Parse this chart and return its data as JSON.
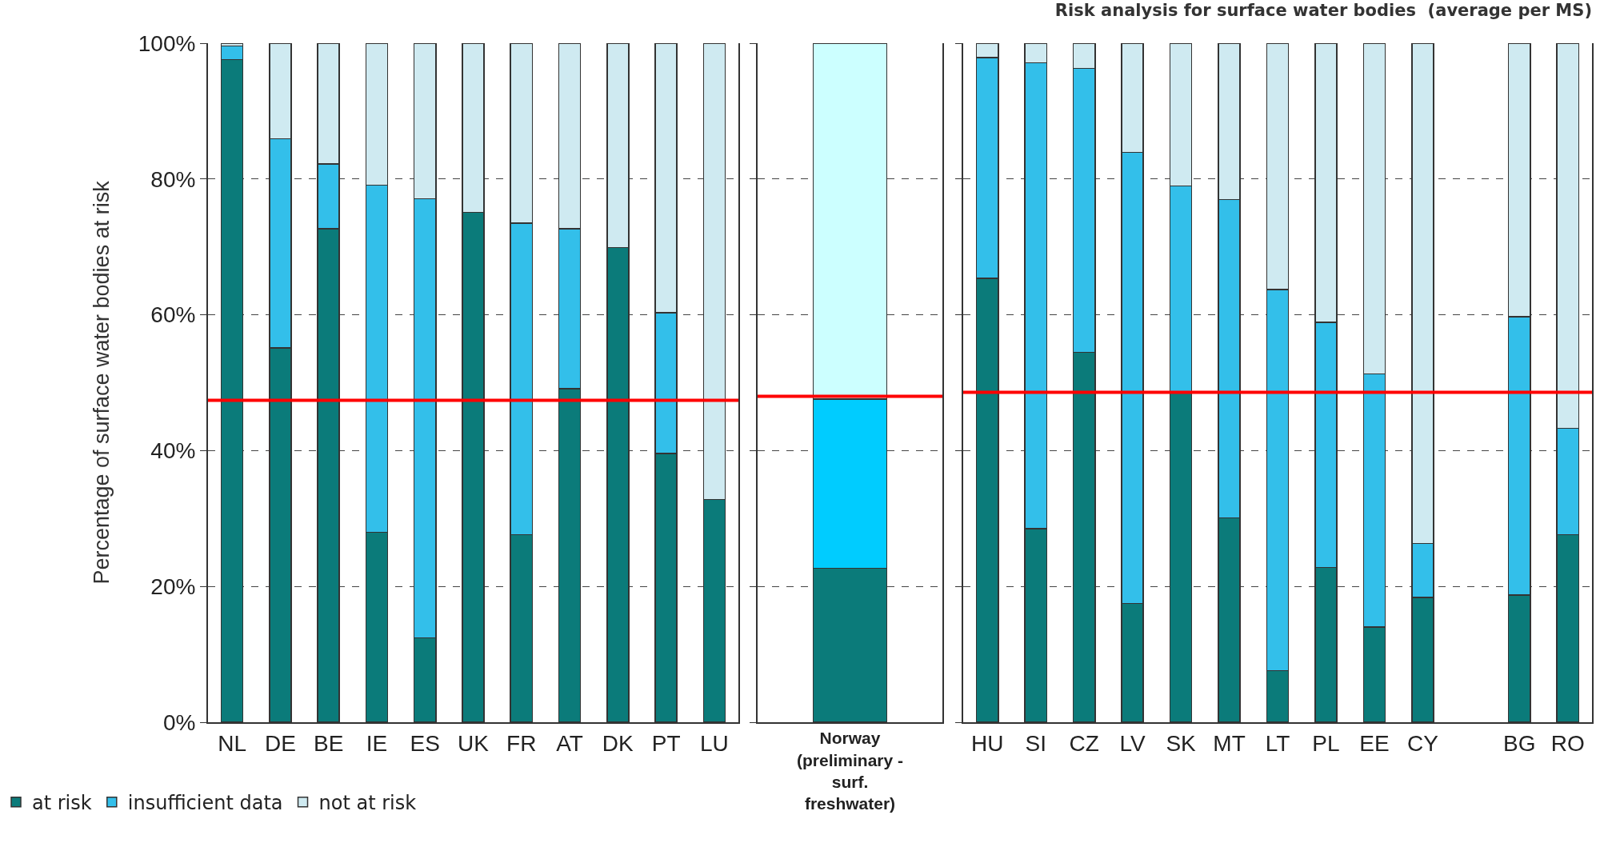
{
  "chart_data": [
    {
      "type": "bar",
      "stacked": true,
      "ylabel": "Percentage of surface water bodies at risk",
      "categories": [
        "NL",
        "DE",
        "BE",
        "IE",
        "ES",
        "UK",
        "FR",
        "AT",
        "DK",
        "PT",
        "LU"
      ],
      "series": [
        {
          "name": "at risk",
          "color": "#0b7b7a",
          "values": [
            97.6,
            55.1,
            72.7,
            28.0,
            12.4,
            75.1,
            27.6,
            49.1,
            69.9,
            39.6,
            32.8
          ]
        },
        {
          "name": "insufficient data",
          "color": "#33bfea",
          "values": [
            2.0,
            30.8,
            9.5,
            51.1,
            64.7,
            0,
            45.9,
            23.6,
            0,
            20.7,
            0
          ]
        },
        {
          "name": "not at risk",
          "color": "#cfeaf1",
          "values": [
            0.4,
            14.1,
            17.8,
            20.9,
            22.9,
            24.9,
            26.5,
            27.3,
            30.1,
            39.7,
            67.2
          ]
        }
      ],
      "ylim": [
        0,
        100
      ],
      "yticks": [
        {
          "value": 0,
          "label": "0%"
        },
        {
          "value": 20,
          "label": "20%"
        },
        {
          "value": 40,
          "label": "40%"
        },
        {
          "value": 60,
          "label": "60%"
        },
        {
          "value": 80,
          "label": "80%"
        },
        {
          "value": 100,
          "label": "100%"
        }
      ],
      "grid": "y",
      "legend": "bottom",
      "ref_lines": [
        {
          "axis": "y",
          "value": 47.4,
          "color": "#ff0000"
        }
      ]
    },
    {
      "type": "bar",
      "stacked": true,
      "categories": [
        "Norway (preliminary - surf. freshwater)"
      ],
      "series": [
        {
          "color": "#0b7b7a",
          "values": [
            22.7
          ]
        },
        {
          "color": "#00ccff",
          "values": [
            24.9
          ]
        },
        {
          "color": "#ccffff",
          "values": [
            52.4
          ]
        }
      ],
      "ylim": [
        0,
        100
      ],
      "yticks": [
        0,
        20,
        40,
        60,
        80,
        100
      ],
      "tick_labels": "x",
      "grid": "y",
      "ref_lines": [
        {
          "axis": "y",
          "value": 48.0,
          "color": "#ff0000"
        }
      ]
    },
    {
      "type": "bar",
      "stacked": true,
      "title": "Risk analysis for surface water bodies  (average per MS)",
      "categories": [
        "HU",
        "SI",
        "CZ",
        "LV",
        "SK",
        "MT",
        "LT",
        "PL",
        "EE",
        "CY",
        null,
        "BG",
        "RO"
      ],
      "series": [
        {
          "color": "#0b7b7a",
          "values": [
            65.4,
            28.5,
            54.5,
            17.5,
            48.7,
            30.1,
            7.6,
            22.8,
            14.0,
            18.4,
            null,
            18.7,
            27.6
          ]
        },
        {
          "color": "#33bfea",
          "values": [
            32.5,
            68.6,
            41.8,
            66.4,
            30.3,
            46.9,
            56.1,
            36.1,
            37.3,
            7.9,
            null,
            41.0,
            15.7
          ]
        },
        {
          "color": "#cfeaf1",
          "values": [
            2.1,
            2.9,
            3.7,
            16.1,
            21.0,
            23.0,
            36.3,
            41.1,
            48.7,
            73.7,
            null,
            40.3,
            56.7
          ]
        }
      ],
      "ylim": [
        0,
        100
      ],
      "yticks": [
        0,
        20,
        40,
        60,
        80,
        100
      ],
      "tick_labels": "x",
      "grid": "y",
      "ref_lines": [
        {
          "axis": "y",
          "value": 48.6,
          "color": "#ff0000"
        }
      ]
    }
  ]
}
